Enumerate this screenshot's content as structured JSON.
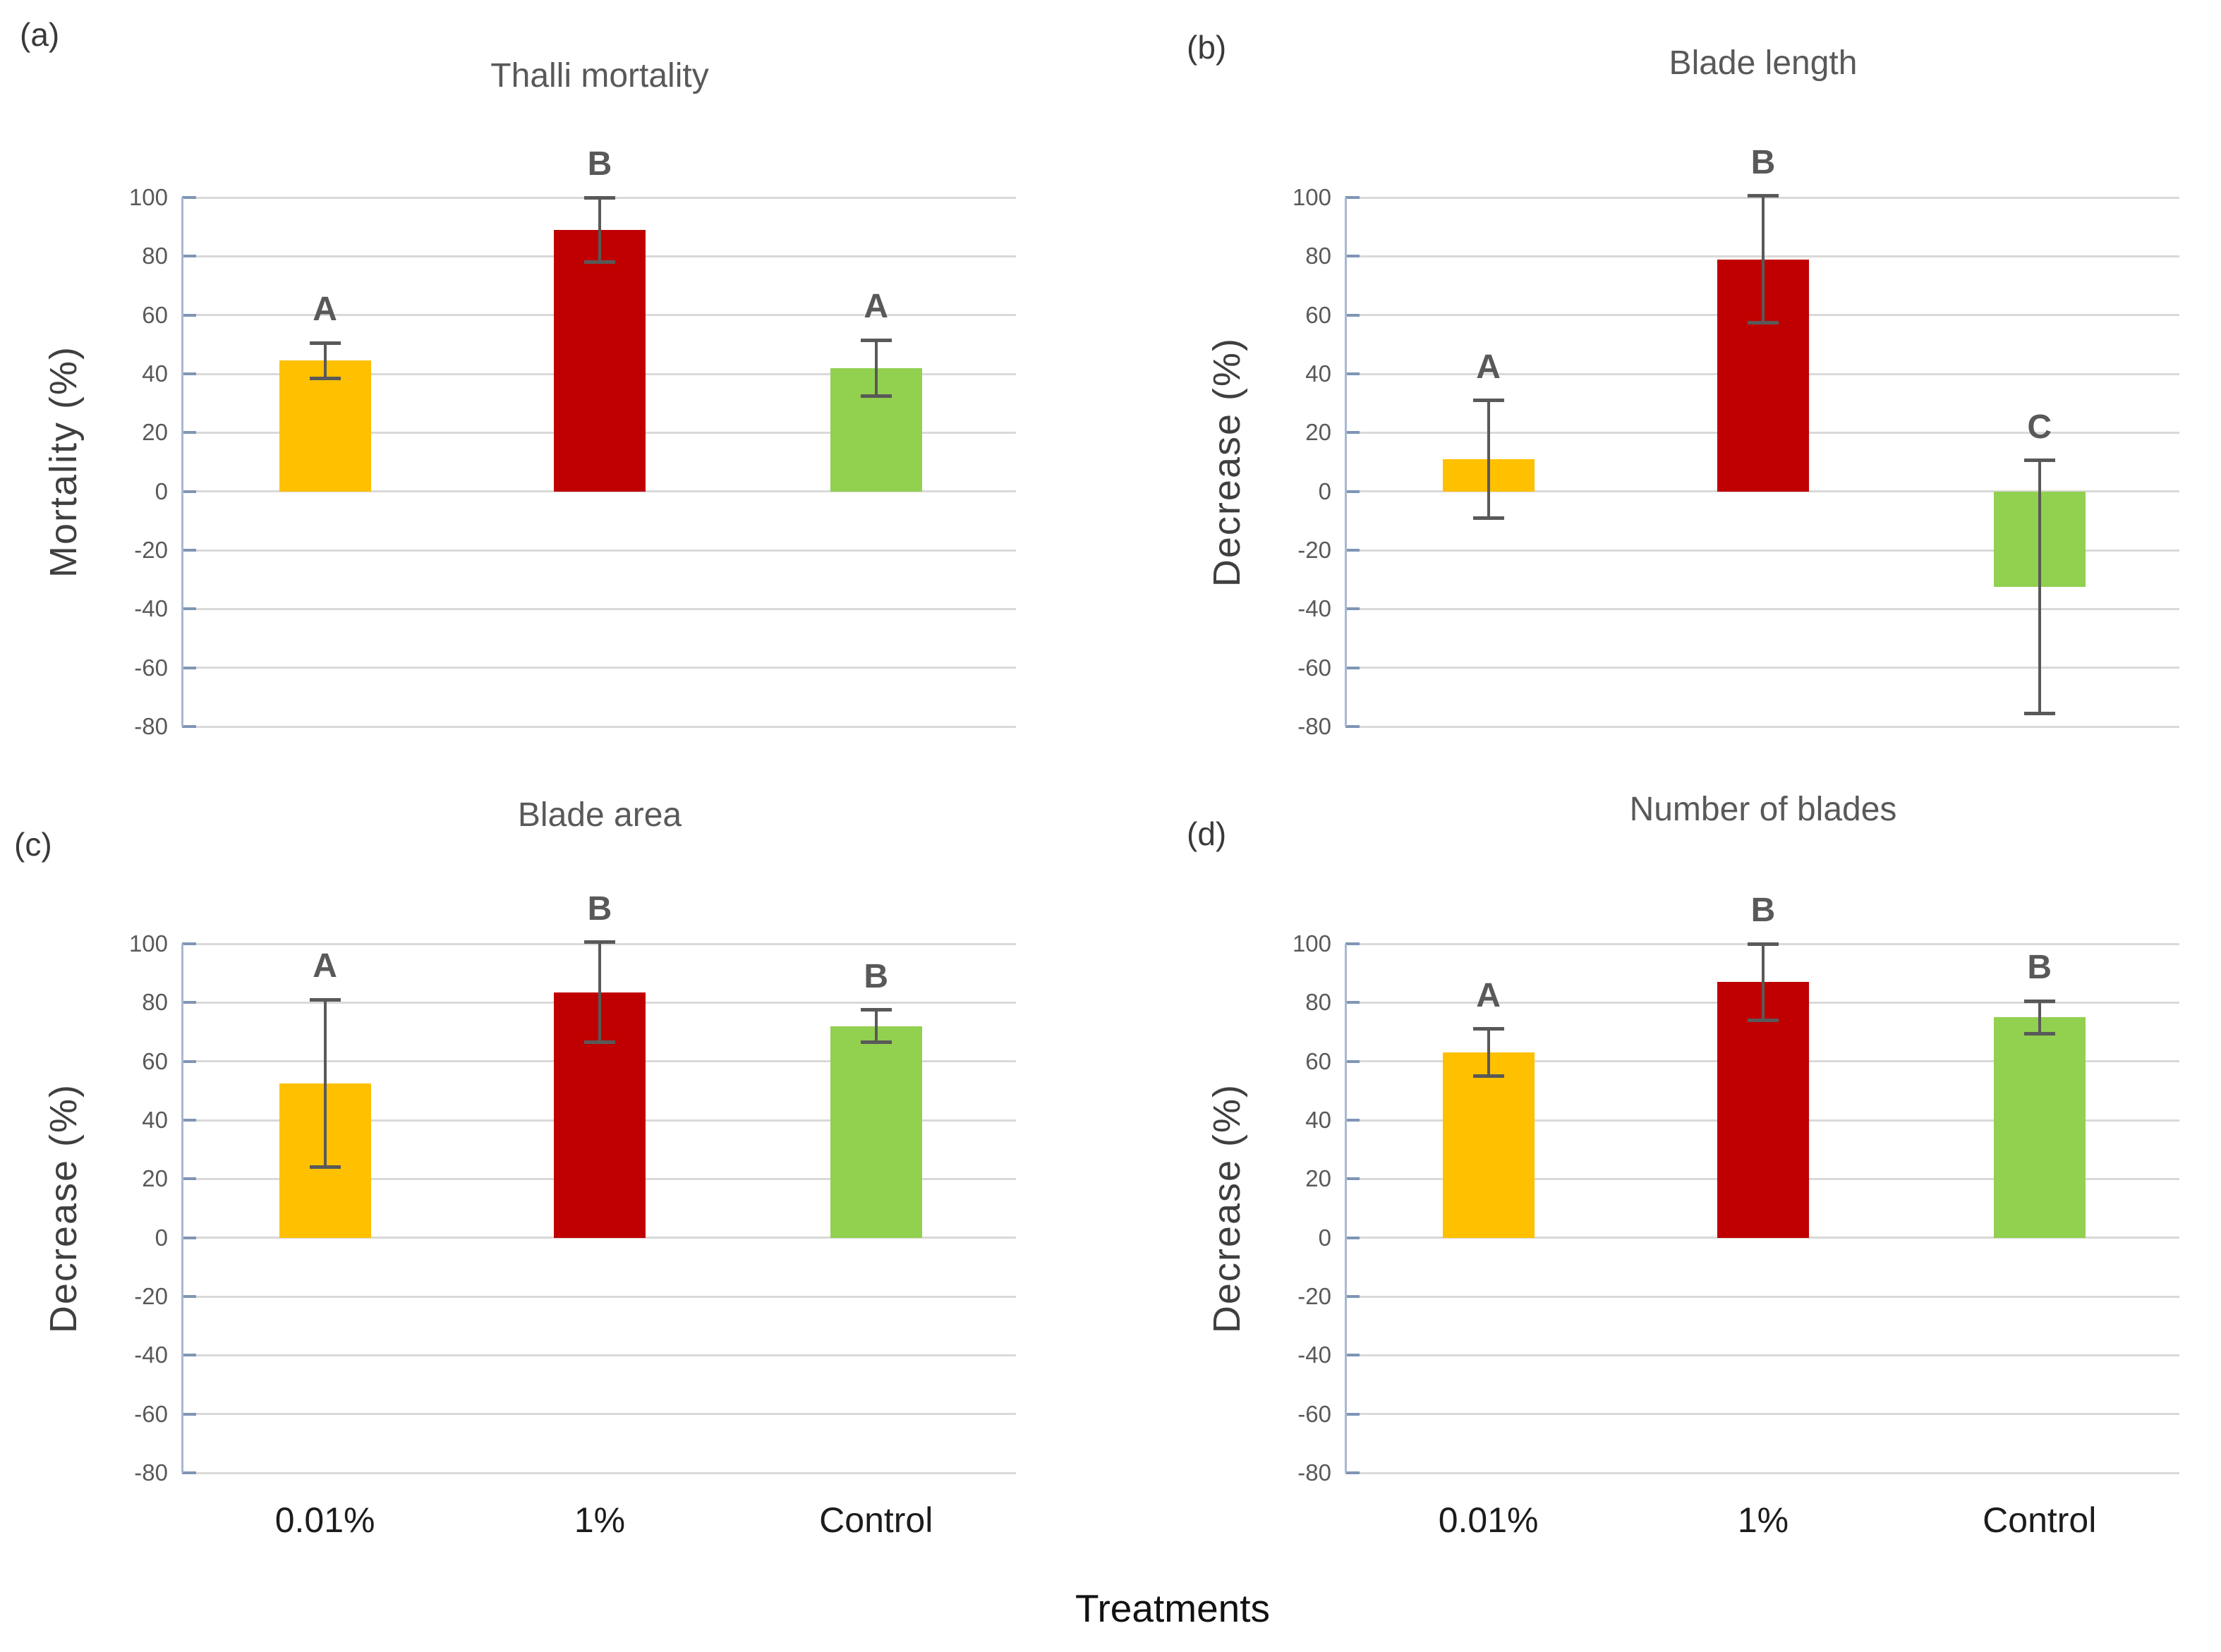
{
  "figure": {
    "xlabel": "Treatments",
    "categories": [
      "0.01%",
      "1%",
      "Control"
    ],
    "bar_colors": [
      "#FFC000",
      "#C00000",
      "#92D050"
    ],
    "error_bar_color": "#595959",
    "axis_line_color": "#a7b8d2",
    "gridline_color": "#d9d9d9"
  },
  "chart_data": [
    {
      "type": "bar",
      "panel": "(a)",
      "title": "Thalli mortality",
      "ylabel": "Mortality (%)",
      "xlabel": "",
      "categories": [
        "0.01%",
        "1%",
        "Control"
      ],
      "values": [
        44.5,
        89,
        42
      ],
      "errors": [
        6,
        11,
        9.5
      ],
      "sig_letters": [
        "A",
        "B",
        "A"
      ],
      "ylim": [
        -80,
        100
      ],
      "ytick_step": 20,
      "grid": true,
      "legend": false,
      "bar_colors": [
        "#FFC000",
        "#C00000",
        "#92D050"
      ],
      "show_x_tick_labels": false
    },
    {
      "type": "bar",
      "panel": "(b)",
      "title": "Blade length",
      "ylabel": "Decrease  (%)",
      "xlabel": "",
      "categories": [
        "0.01%",
        "1%",
        "Control"
      ],
      "values": [
        11,
        79,
        -32.5
      ],
      "errors": [
        20,
        21.5,
        43
      ],
      "sig_letters": [
        "A",
        "B",
        "C"
      ],
      "ylim": [
        -80,
        100
      ],
      "ytick_step": 20,
      "grid": true,
      "legend": false,
      "bar_colors": [
        "#FFC000",
        "#C00000",
        "#92D050"
      ],
      "show_x_tick_labels": false
    },
    {
      "type": "bar",
      "panel": "(c)",
      "title": "Blade area",
      "ylabel": "Decrease  (%)",
      "xlabel": "",
      "categories": [
        "0.01%",
        "1%",
        "Control"
      ],
      "values": [
        52.5,
        83.5,
        72
      ],
      "errors": [
        28.5,
        17,
        5.5
      ],
      "sig_letters": [
        "A",
        "B",
        "B"
      ],
      "ylim": [
        -80,
        100
      ],
      "ytick_step": 20,
      "grid": true,
      "legend": false,
      "bar_colors": [
        "#FFC000",
        "#C00000",
        "#92D050"
      ],
      "show_x_tick_labels": true
    },
    {
      "type": "bar",
      "panel": "(d)",
      "title": "Number of blades",
      "ylabel": "Decrease  (%)",
      "xlabel": "",
      "categories": [
        "0.01%",
        "1%",
        "Control"
      ],
      "values": [
        63,
        87,
        75
      ],
      "errors": [
        8,
        13,
        5.5
      ],
      "sig_letters": [
        "A",
        "B",
        "B"
      ],
      "ylim": [
        -80,
        100
      ],
      "ytick_step": 20,
      "grid": true,
      "legend": false,
      "bar_colors": [
        "#FFC000",
        "#C00000",
        "#92D050"
      ],
      "show_x_tick_labels": true
    }
  ]
}
